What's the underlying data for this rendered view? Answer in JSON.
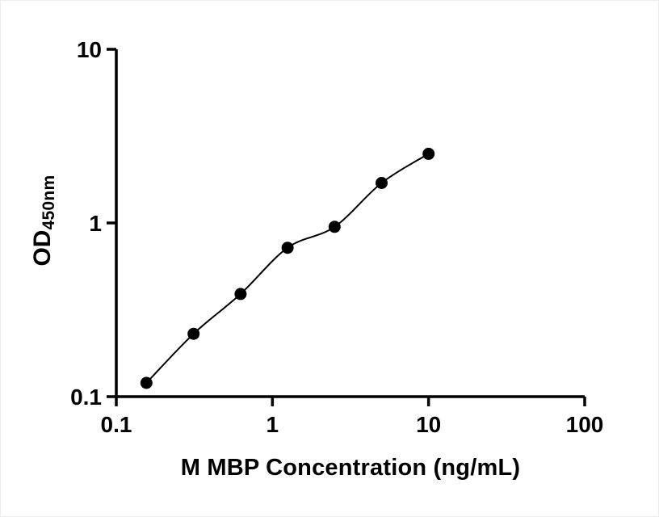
{
  "figure": {
    "background": "#ffffff",
    "axis_color": "#000000",
    "text_color": "#000000"
  },
  "chart_data": {
    "type": "scatter",
    "title": "",
    "xlabel": "M MBP Concentration (ng/mL)",
    "ylabel": "OD450nm",
    "ylabel_main": "OD",
    "ylabel_sub": "450nm",
    "xscale": "log",
    "yscale": "log",
    "xlim": [
      0.1,
      100
    ],
    "ylim": [
      0.1,
      10
    ],
    "x_ticks": [
      0.1,
      1,
      10,
      100
    ],
    "x_tick_labels": [
      "0.1",
      "1",
      "10",
      "100"
    ],
    "y_ticks": [
      0.1,
      1,
      10
    ],
    "y_tick_labels": [
      "0.1",
      "1",
      "10"
    ],
    "grid": false,
    "legend": "none",
    "series": [
      {
        "x": [
          0.156,
          0.3125,
          0.625,
          1.25,
          2.5,
          5,
          10
        ],
        "y": [
          0.12,
          0.23,
          0.39,
          0.72,
          0.95,
          1.7,
          2.5
        ],
        "marker": "filled-circle",
        "marker_color": "#000000",
        "marker_radius": 7.5,
        "line": "smooth-fit",
        "line_color": "#000000",
        "line_width": 2
      }
    ]
  }
}
